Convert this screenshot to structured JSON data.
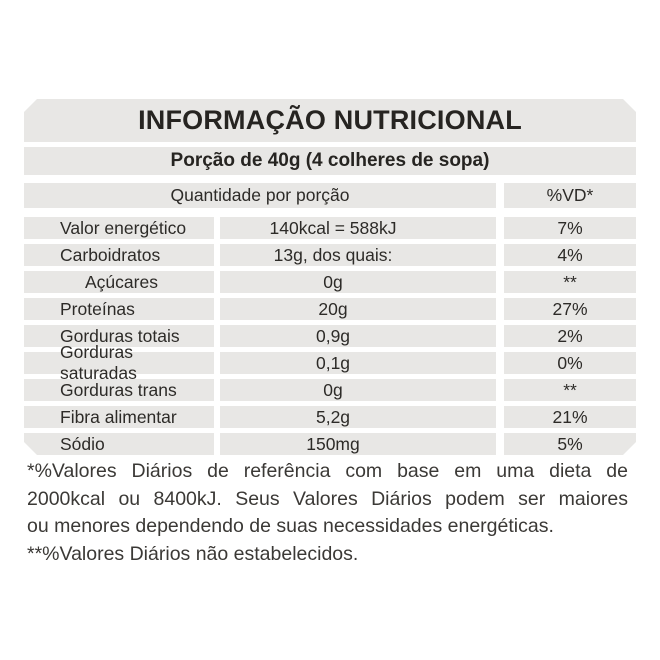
{
  "colors": {
    "page_bg": "#ffffff",
    "cell_bg": "#e8e7e5",
    "text_dark": "#262421",
    "text_main": "#2d2b28",
    "text_foot": "#3b3936"
  },
  "header": {
    "title": "INFORMAÇÃO NUTRICIONAL",
    "portion": "Porção de 40g (4 colheres de sopa)"
  },
  "table": {
    "column_headers": {
      "quantity": "Quantidade por porção",
      "dv": "%VD*"
    },
    "rows": [
      {
        "name": "Valor energético",
        "value": "140kcal = 588kJ",
        "dv": "7%",
        "indent": false
      },
      {
        "name": "Carboidratos",
        "value": "13g, dos quais:",
        "dv": "4%",
        "indent": false
      },
      {
        "name": "Açúcares",
        "value": "0g",
        "dv": "**",
        "indent": true
      },
      {
        "name": "Proteínas",
        "value": "20g",
        "dv": "27%",
        "indent": false
      },
      {
        "name": "Gorduras totais",
        "value": "0,9g",
        "dv": "2%",
        "indent": false
      },
      {
        "name": "Gorduras saturadas",
        "value": "0,1g",
        "dv": "0%",
        "indent": false
      },
      {
        "name": "Gorduras trans",
        "value": "0g",
        "dv": "**",
        "indent": false
      },
      {
        "name": "Fibra alimentar",
        "value": "5,2g",
        "dv": "21%",
        "indent": false
      },
      {
        "name": "Sódio",
        "value": "150mg",
        "dv": "5%",
        "indent": false
      }
    ]
  },
  "footnotes": {
    "lines": [
      "*%Valores Diários de referência com base em uma dieta de",
      "2000kcal ou 8400kJ. Seus Valores Diários podem ser maiores",
      "ou menores dependendo de suas necessidades energéticas.",
      "**%Valores Diários não estabelecidos."
    ]
  }
}
